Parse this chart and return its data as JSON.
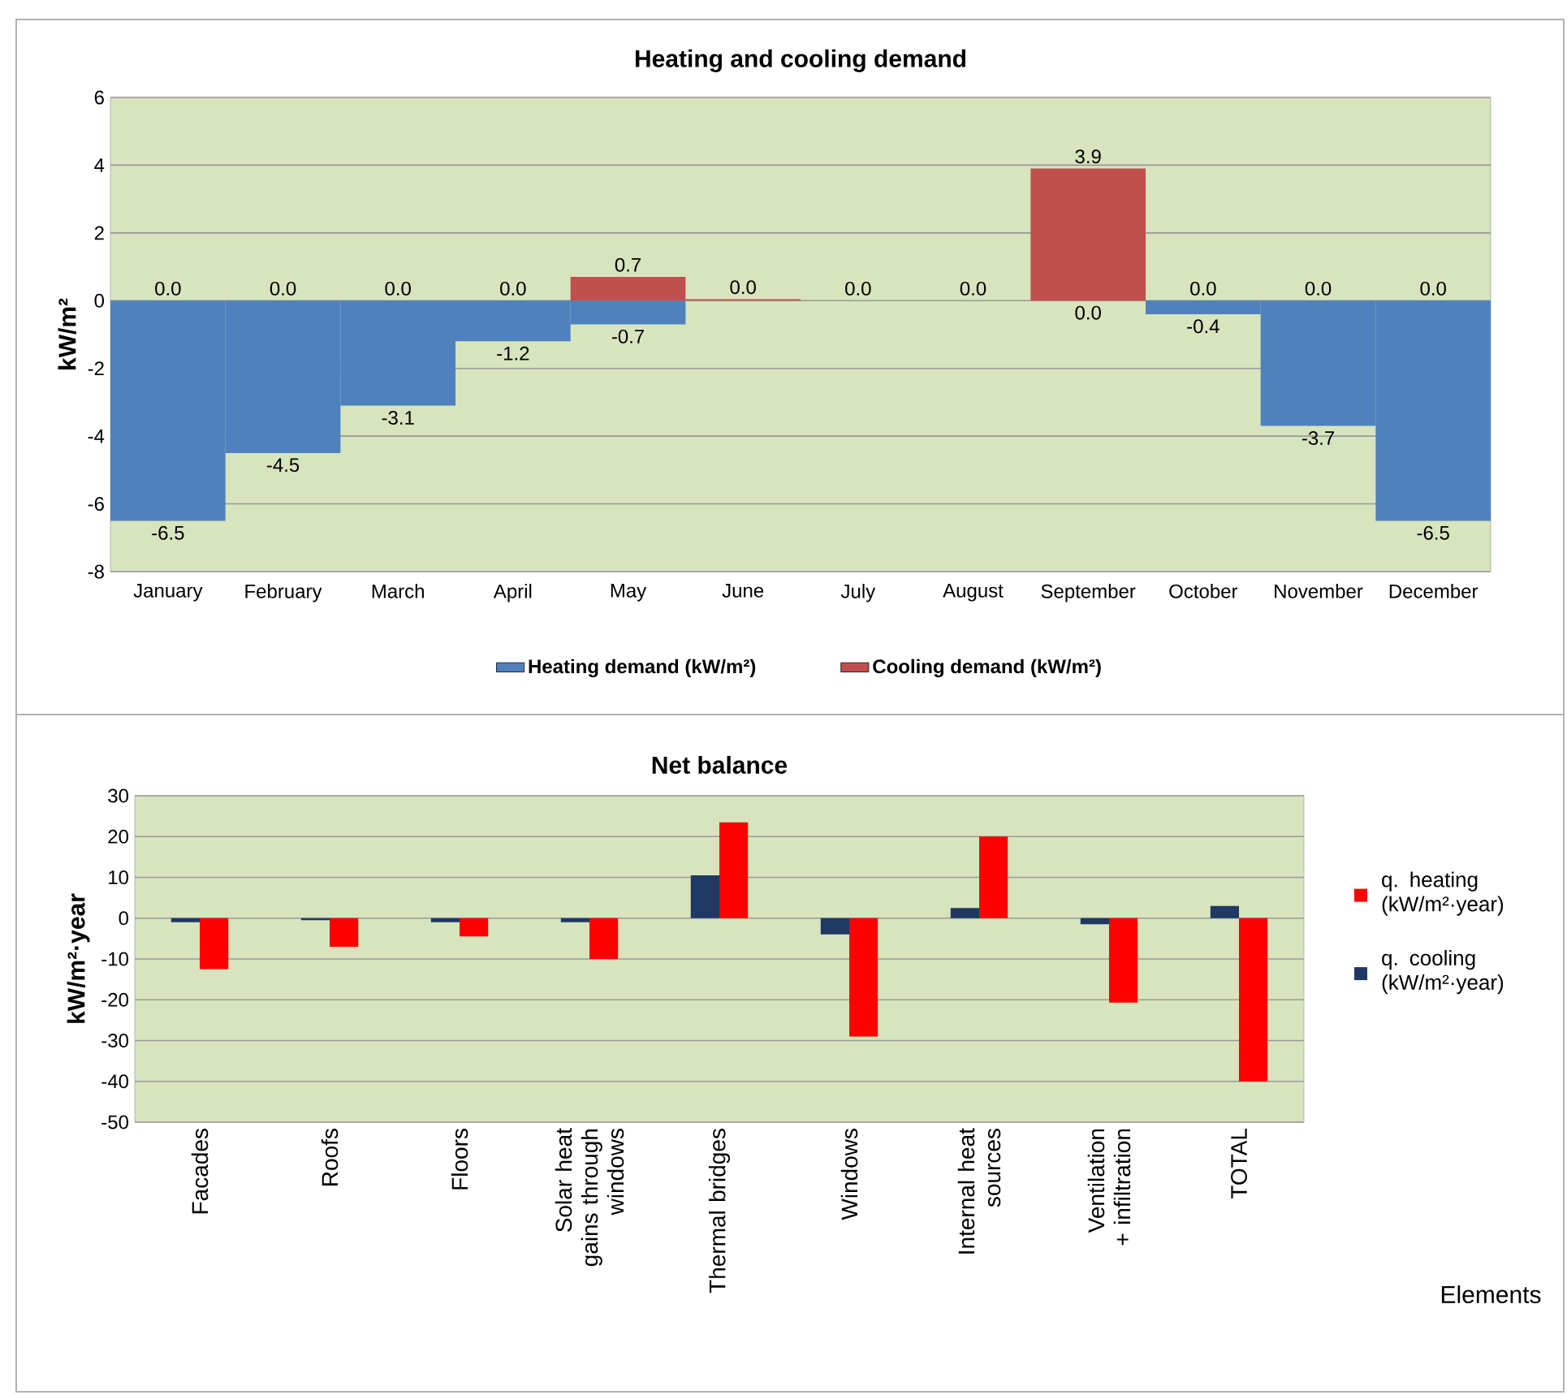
{
  "chart_data": [
    {
      "type": "bar",
      "title": "Heating and cooling demand",
      "ylabel": "kW/m²",
      "categories": [
        "January",
        "February",
        "March",
        "April",
        "May",
        "June",
        "July",
        "August",
        "September",
        "October",
        "November",
        "December"
      ],
      "series": [
        {
          "name": "Heating demand (kW/m²)",
          "color": "#4f81bd",
          "values": [
            -6.5,
            -4.5,
            -3.1,
            -1.2,
            -0.7,
            0,
            0,
            0,
            0,
            -0.4,
            -3.7,
            -6.5
          ],
          "value_labels": [
            "-6.5",
            "-4.5",
            "-3.1",
            "-1.2",
            "-0.7",
            null,
            null,
            null,
            "0.0",
            "-0.4",
            "-3.7",
            "-6.5"
          ]
        },
        {
          "name": "Cooling demand (kW/m²)",
          "color": "#c0504d",
          "values": [
            0,
            0,
            0,
            0,
            0.7,
            0.04,
            0,
            0,
            3.9,
            0,
            0,
            0
          ],
          "value_labels": [
            "0.0",
            "0.0",
            "0.0",
            "0.0",
            "0.7",
            "0.0",
            "0.0",
            "0.0",
            "3.9",
            "0.0",
            "0.0",
            "0.0"
          ]
        }
      ],
      "ylim": [
        -8,
        6
      ],
      "yticks": [
        -8,
        -6,
        -4,
        -2,
        0,
        2,
        4,
        6
      ],
      "grid": "y",
      "legend": "bottom"
    },
    {
      "type": "bar",
      "title": "Net balance",
      "ylabel": "kW/m²·year",
      "xlabel": "Elements",
      "categories": [
        "Facades",
        "Roofs",
        "Floors",
        "Solar heat gains through windows",
        "Thermal bridges",
        "Windows",
        "Internal heat sources",
        "Ventilation + infiltration",
        "TOTAL"
      ],
      "series": [
        {
          "name": "q. heating (kW/m²·year)",
          "color": "#ff0000",
          "values": [
            -12.5,
            -7,
            -4.5,
            -10,
            23.5,
            -29,
            20,
            -20.7,
            -40
          ]
        },
        {
          "name": "q. cooling (kW/m²·year)",
          "color": "#1f3864",
          "values": [
            -1,
            -0.5,
            -1,
            -1,
            10.5,
            -4,
            2.5,
            -1.5,
            3
          ]
        }
      ],
      "ylim": [
        -50,
        30
      ],
      "yticks": [
        -50,
        -40,
        -30,
        -20,
        -10,
        0,
        10,
        20,
        30
      ],
      "grid": "y",
      "legend": "right"
    }
  ]
}
